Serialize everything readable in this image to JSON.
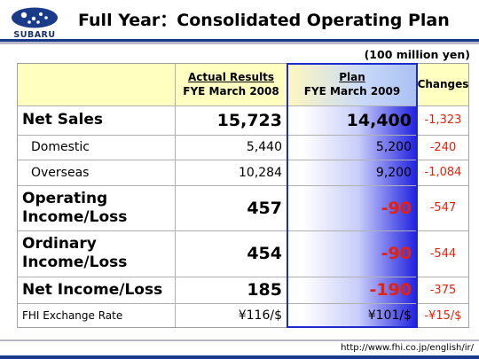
{
  "header": {
    "logo_text": "SUBARU",
    "title": "Full Year：Consolidated Operating Plan"
  },
  "unit_note": "(100 million yen)",
  "table": {
    "columns": [
      {
        "line1": "Actual Results",
        "line2": "FYE March 2008"
      },
      {
        "line1": "Plan",
        "line2": "FYE March 2009"
      },
      {
        "line1": "Changes",
        "line2": ""
      }
    ],
    "rows": [
      {
        "label": "Net Sales",
        "actual": "15,723",
        "plan": "14,400",
        "change": "-1,323"
      },
      {
        "label": "Domestic",
        "actual": "5,440",
        "plan": "5,200",
        "change": "-240"
      },
      {
        "label": "Overseas",
        "actual": "10,284",
        "plan": "9,200",
        "change": "-1,084"
      },
      {
        "label": "Operating Income/Loss",
        "actual": "457",
        "plan": "-90",
        "change": "-547"
      },
      {
        "label": "Ordinary Income/Loss",
        "actual": "454",
        "plan": "-90",
        "change": "-544"
      },
      {
        "label": "Net Income/Loss",
        "actual": "185",
        "plan": "-190",
        "change": "-375"
      },
      {
        "label": "FHI Exchange Rate",
        "actual": "¥116/$",
        "plan": "¥101/$",
        "change": "-¥15/$"
      }
    ]
  },
  "footer": {
    "url": "http://www.fhi.co.jp/english/ir/"
  },
  "colors": {
    "brand_navy": "#1a3a8a",
    "plan_border": "#1a2bd0",
    "negative_red": "#e8200a",
    "header_yellow": "#ffffc0"
  }
}
